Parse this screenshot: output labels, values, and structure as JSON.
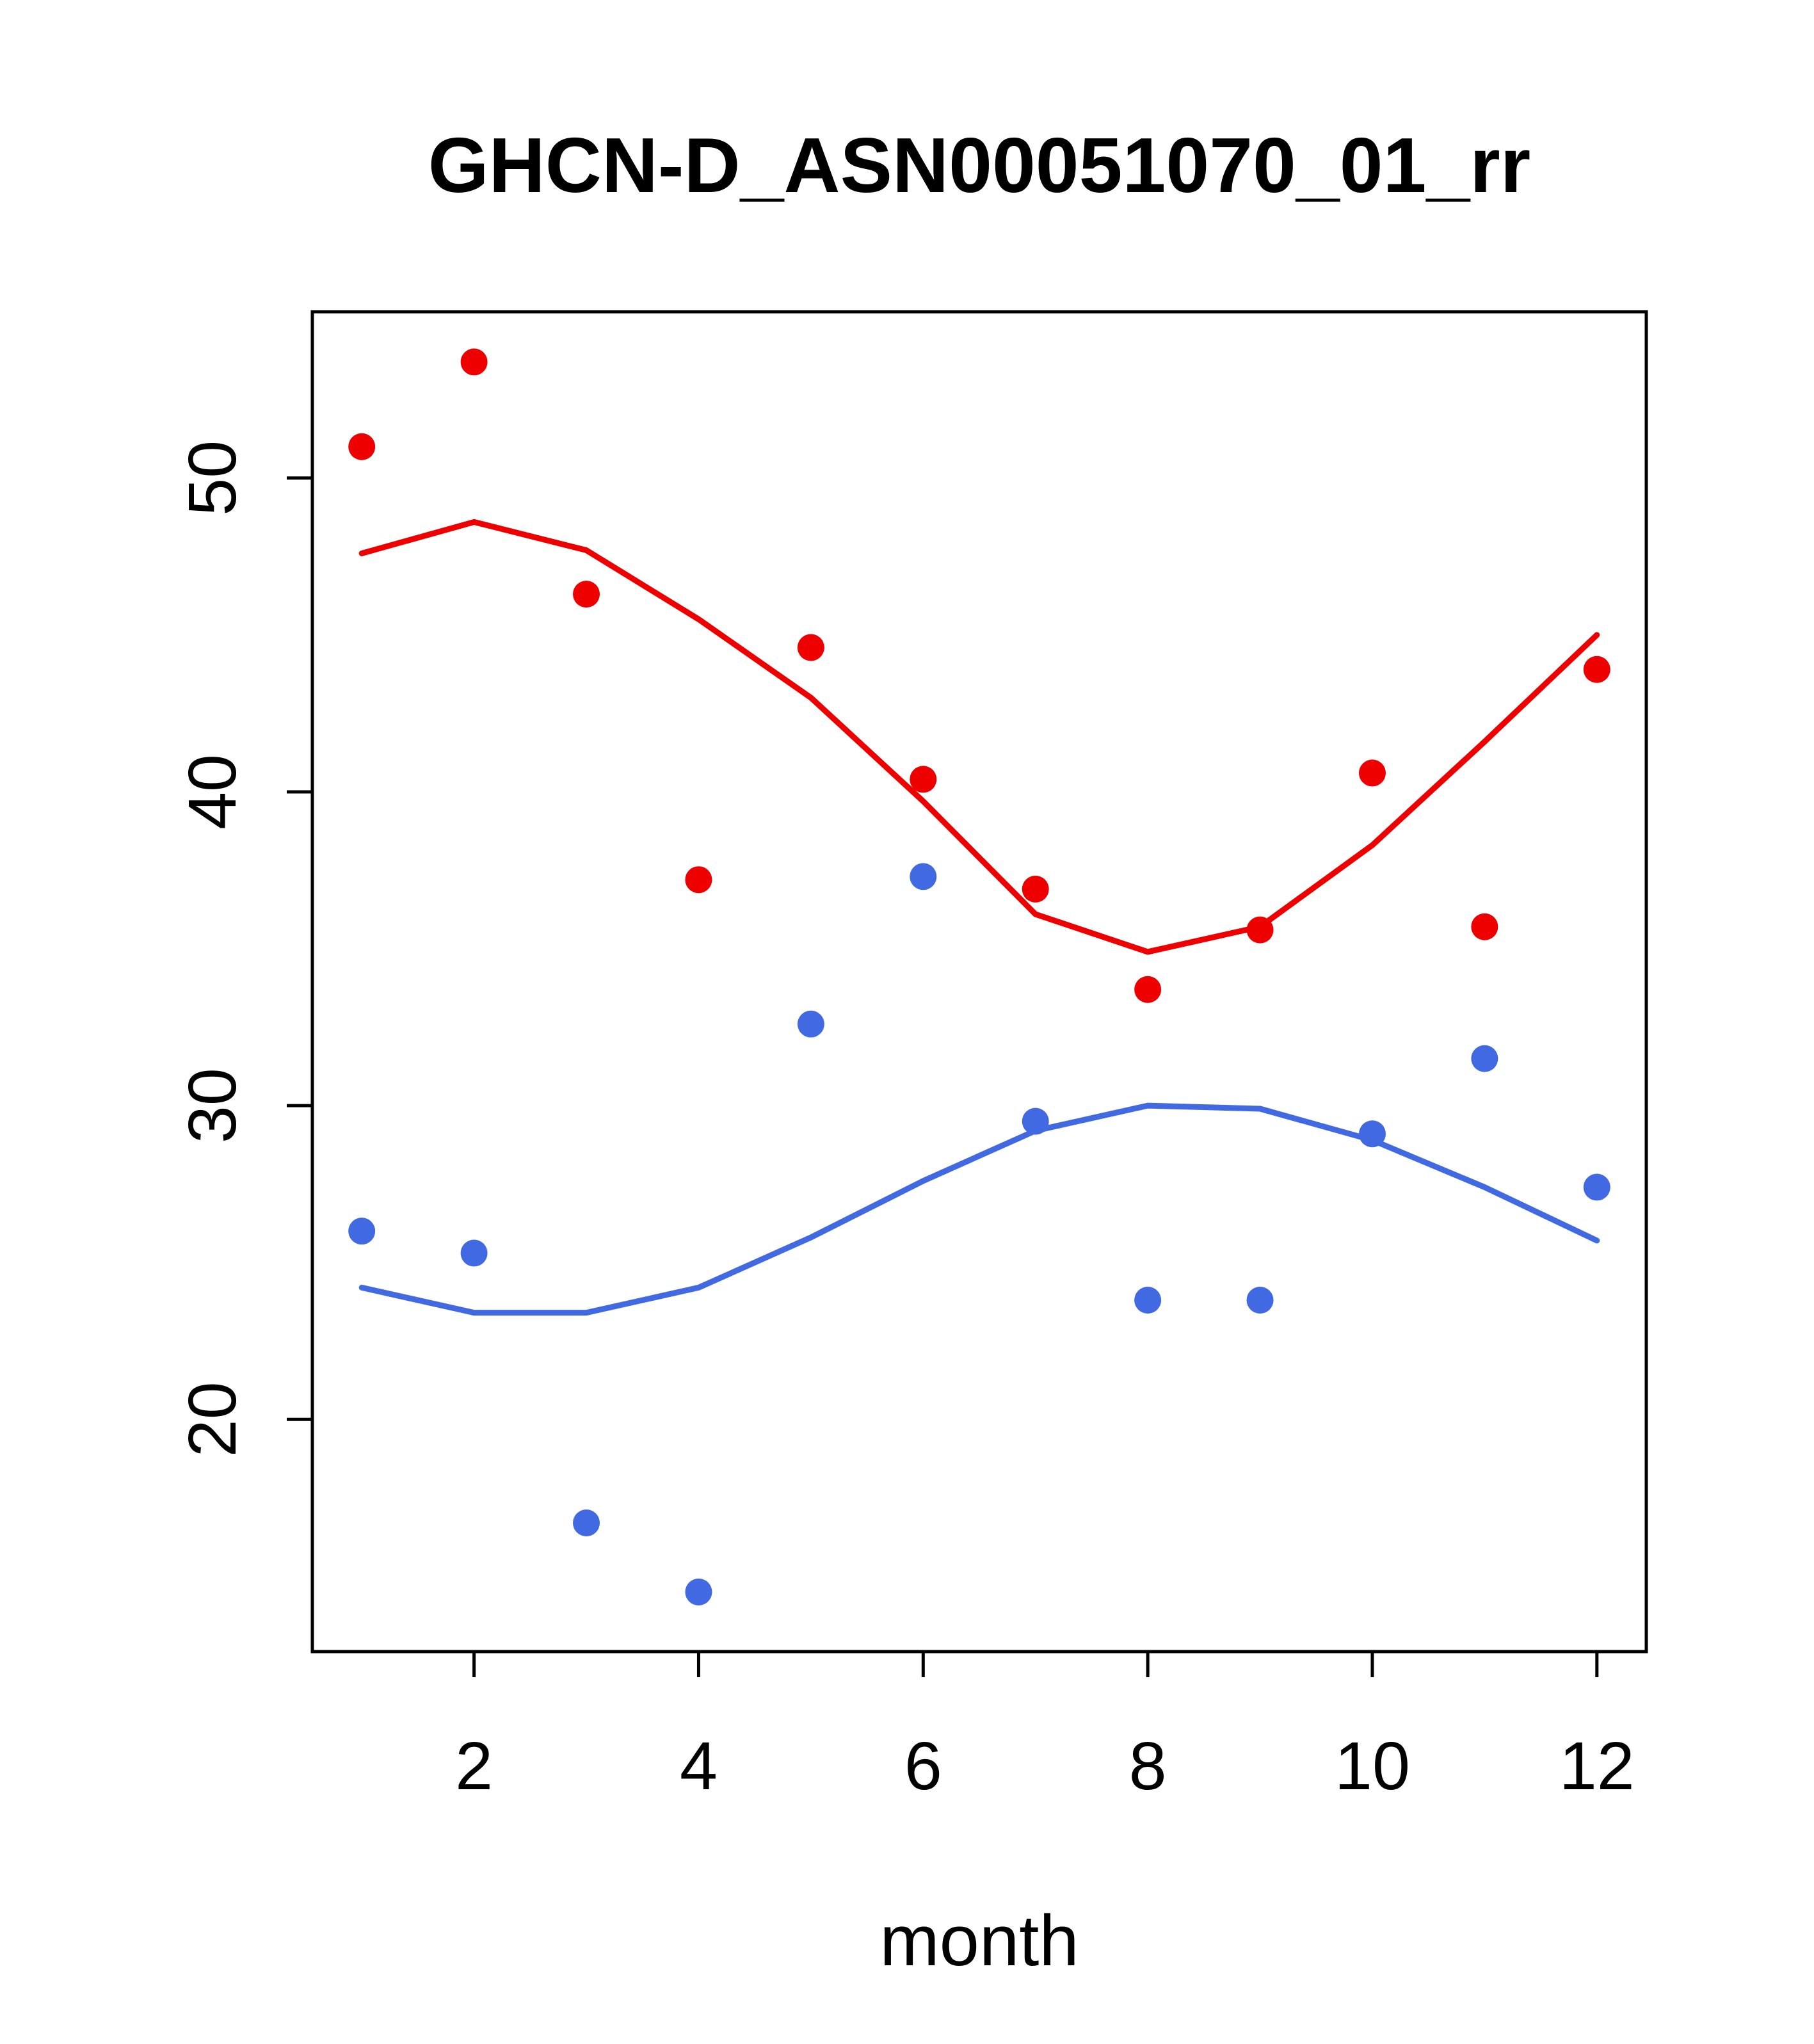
{
  "chart_data": {
    "type": "scatter",
    "title": "GHCN-D_ASN00051070_01_rr",
    "xlabel": "month",
    "ylabel": "",
    "xlim": [
      0.56,
      12.44
    ],
    "ylim": [
      12.6,
      55.3
    ],
    "x_ticks": [
      2,
      4,
      6,
      8,
      10,
      12
    ],
    "y_ticks": [
      20,
      30,
      40,
      50
    ],
    "grid": false,
    "legend": "none",
    "colors": {
      "series_red": "#ee0000",
      "series_blue": "#4169e1",
      "axis": "#000000",
      "background": "#ffffff"
    },
    "x": [
      1,
      2,
      3,
      4,
      5,
      6,
      7,
      8,
      9,
      10,
      11,
      12
    ],
    "series": [
      {
        "name": "red-points",
        "kind": "points",
        "color": "#ee0000",
        "values": [
          51.0,
          53.7,
          46.3,
          37.2,
          44.6,
          40.4,
          36.9,
          33.7,
          35.6,
          40.6,
          35.7,
          43.9
        ]
      },
      {
        "name": "red-smooth-line",
        "kind": "line",
        "color": "#ee0000",
        "values": [
          47.6,
          48.6,
          47.7,
          45.5,
          43.0,
          39.7,
          36.1,
          34.9,
          35.7,
          38.3,
          41.6,
          45.0
        ]
      },
      {
        "name": "blue-points",
        "kind": "points",
        "color": "#4169e1",
        "values": [
          26.0,
          25.3,
          16.7,
          14.5,
          32.6,
          37.3,
          29.5,
          23.8,
          23.8,
          29.1,
          31.5,
          27.4
        ]
      },
      {
        "name": "blue-smooth-line",
        "kind": "line",
        "color": "#4169e1",
        "values": [
          24.2,
          23.4,
          23.4,
          24.2,
          25.8,
          27.6,
          29.2,
          30.0,
          29.9,
          28.9,
          27.4,
          25.7
        ]
      }
    ]
  }
}
